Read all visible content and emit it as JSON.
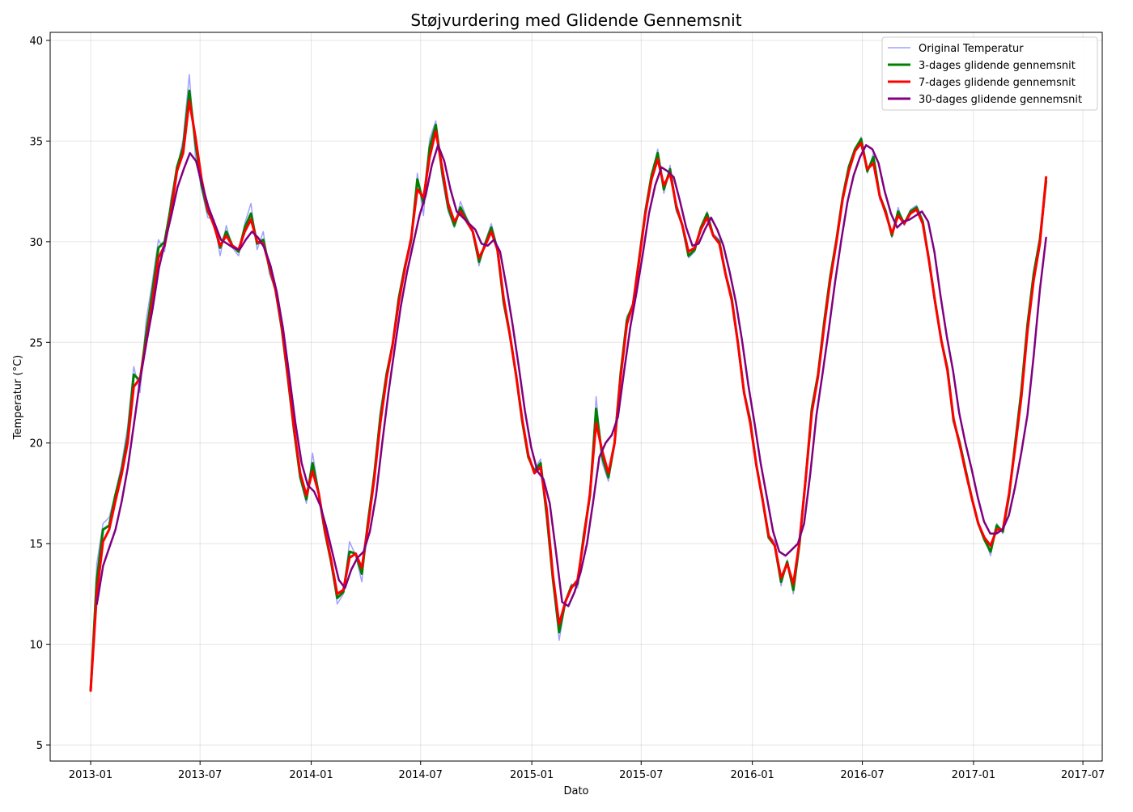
{
  "chart_data": {
    "type": "line",
    "title": "Støjvurdering med Glidende Gennemsnit",
    "xlabel": "Dato",
    "ylabel": "Temperatur (°C)",
    "x_axis_type": "date",
    "xlim": [
      "2012-10-26",
      "2017-08-02"
    ],
    "ylim": [
      4.2,
      40.4
    ],
    "x_ticks": [
      "2013-01",
      "2013-07",
      "2014-01",
      "2014-07",
      "2015-01",
      "2015-07",
      "2016-01",
      "2016-07",
      "2017-01",
      "2017-07"
    ],
    "y_ticks": [
      5,
      10,
      15,
      20,
      25,
      30,
      35,
      40
    ],
    "grid": true,
    "legend_position": "top-right",
    "date_range": [
      "2013-01-01",
      "2017-05-01"
    ],
    "series": [
      {
        "name": "Original Temperatur",
        "color": "#8080ff",
        "opacity": 0.75,
        "line_width": 1.5,
        "values": [
          7.7,
          14.0,
          16.0,
          16.3,
          17.5,
          18.9,
          20.8,
          23.8,
          22.5,
          26.1,
          28.0,
          30.1,
          29.5,
          32.1,
          33.6,
          35.1,
          38.3,
          34.2,
          32.6,
          31.2,
          31.1,
          29.3,
          30.8,
          29.7,
          29.3,
          30.9,
          31.9,
          29.6,
          30.5,
          28.4,
          27.6,
          25.6,
          23.1,
          20.5,
          18.2,
          17.0,
          19.5,
          17.6,
          15.5,
          14.3,
          12.0,
          12.5,
          15.1,
          14.4,
          13.1,
          16.3,
          18.5,
          21.6,
          23.5,
          24.8,
          27.3,
          28.7,
          29.8,
          33.4,
          31.3,
          35.1,
          36.0,
          33.2,
          31.5,
          30.7,
          32.0,
          31.2,
          30.6,
          28.8,
          30.0,
          30.9,
          29.7,
          26.8,
          25.6,
          23.5,
          21.1,
          19.3,
          18.7,
          19.2,
          16.1,
          13.4,
          10.2,
          12.0,
          13.0,
          12.8,
          15.5,
          17.2,
          22.3,
          19.0,
          18.1,
          19.9,
          23.5,
          26.3,
          26.8,
          29.1,
          31.6,
          33.2,
          34.6,
          32.4,
          33.8,
          31.5,
          30.9,
          29.2,
          29.5,
          30.6,
          31.5,
          30.4,
          30.1,
          28.5,
          27.3,
          25.1,
          22.6,
          21.3,
          19.0,
          17.4,
          15.4,
          15.1,
          12.9,
          14.2,
          12.5,
          14.8,
          18.1,
          21.9,
          23.4,
          26.1,
          28.4,
          30.0,
          32.1,
          33.8,
          34.5,
          35.2,
          33.4,
          34.4,
          32.1,
          31.6,
          30.2,
          31.7,
          30.8,
          31.6,
          31.8,
          31.1,
          29.1,
          27.0,
          25.2,
          23.8,
          21.0,
          20.1,
          18.7,
          17.3,
          16.1,
          15.3,
          14.4,
          16.0,
          15.5,
          17.3,
          20.1,
          22.8,
          26.1,
          28.5,
          30.2,
          33.0
        ]
      },
      {
        "name": "3-dages glidende gennemsnit",
        "color": "#008000",
        "line_width": 3,
        "values": [
          7.7,
          13.2,
          15.7,
          15.9,
          17.4,
          18.6,
          20.3,
          23.4,
          23.1,
          25.4,
          27.5,
          29.7,
          30.0,
          31.7,
          33.7,
          34.7,
          37.5,
          34.9,
          32.8,
          31.5,
          30.9,
          29.7,
          30.5,
          29.8,
          29.5,
          30.7,
          31.4,
          29.9,
          30.1,
          28.7,
          27.6,
          25.7,
          23.2,
          20.6,
          18.3,
          17.2,
          19.0,
          17.5,
          15.6,
          14.1,
          12.3,
          12.6,
          14.6,
          14.5,
          13.5,
          16.1,
          18.4,
          21.3,
          23.4,
          24.9,
          27.2,
          28.8,
          30.1,
          33.1,
          31.9,
          34.7,
          35.8,
          33.5,
          31.7,
          30.8,
          31.7,
          31.1,
          30.5,
          29.0,
          29.9,
          30.7,
          29.6,
          27.0,
          25.4,
          23.4,
          21.1,
          19.3,
          18.6,
          19.0,
          16.4,
          13.2,
          10.6,
          12.1,
          12.9,
          13.0,
          15.4,
          17.4,
          21.7,
          19.3,
          18.3,
          20.0,
          23.5,
          26.1,
          26.9,
          29.2,
          31.5,
          33.3,
          34.4,
          32.6,
          33.6,
          31.7,
          30.8,
          29.3,
          29.6,
          30.7,
          31.4,
          30.3,
          30.0,
          28.4,
          27.2,
          25.0,
          22.5,
          21.1,
          18.9,
          17.2,
          15.3,
          14.9,
          13.1,
          14.1,
          12.7,
          15.0,
          18.2,
          21.7,
          23.4,
          26.0,
          28.3,
          30.1,
          32.2,
          33.7,
          34.6,
          35.1,
          33.5,
          34.2,
          32.3,
          31.5,
          30.3,
          31.5,
          30.9,
          31.5,
          31.7,
          31.0,
          29.1,
          27.0,
          25.1,
          23.7,
          21.1,
          20.0,
          18.6,
          17.2,
          16.0,
          15.2,
          14.6,
          15.9,
          15.6,
          17.4,
          20.0,
          22.6,
          25.9,
          28.4,
          30.1,
          33.0
        ]
      },
      {
        "name": "7-dages glidende gennemsnit",
        "color": "#ff0000",
        "line_width": 3,
        "values": [
          7.7,
          12.5,
          15.1,
          15.7,
          17.1,
          18.4,
          20.0,
          22.8,
          23.2,
          25.0,
          27.0,
          29.2,
          29.8,
          31.4,
          33.5,
          34.4,
          37.0,
          35.2,
          33.1,
          31.6,
          30.8,
          29.8,
          30.3,
          29.8,
          29.6,
          30.5,
          31.1,
          30.0,
          29.9,
          28.8,
          27.6,
          25.8,
          23.3,
          20.7,
          18.5,
          17.4,
          18.6,
          17.5,
          15.7,
          14.2,
          12.5,
          12.7,
          14.3,
          14.5,
          13.8,
          15.9,
          18.2,
          21.0,
          23.2,
          24.9,
          27.0,
          28.7,
          30.2,
          32.6,
          32.2,
          34.2,
          35.5,
          33.7,
          31.9,
          31.0,
          31.5,
          31.0,
          30.5,
          29.2,
          29.8,
          30.5,
          29.6,
          27.2,
          25.4,
          23.4,
          21.2,
          19.4,
          18.5,
          18.8,
          16.7,
          13.4,
          11.0,
          12.1,
          12.8,
          13.2,
          15.2,
          17.5,
          21.0,
          19.6,
          18.5,
          20.0,
          23.3,
          25.9,
          26.9,
          29.1,
          31.4,
          33.1,
          34.1,
          32.8,
          33.4,
          31.8,
          30.8,
          29.5,
          29.7,
          30.6,
          31.2,
          30.3,
          29.9,
          28.4,
          27.1,
          25.0,
          22.5,
          21.0,
          18.9,
          17.2,
          15.4,
          14.9,
          13.3,
          14.0,
          13.0,
          15.1,
          18.2,
          21.5,
          23.3,
          25.8,
          28.1,
          30.0,
          32.1,
          33.5,
          34.5,
          34.9,
          33.6,
          33.9,
          32.3,
          31.4,
          30.4,
          31.3,
          30.9,
          31.4,
          31.6,
          30.9,
          29.1,
          27.0,
          25.1,
          23.6,
          21.2,
          19.9,
          18.5,
          17.2,
          16.0,
          15.3,
          14.9,
          15.7,
          15.7,
          17.5,
          19.8,
          22.3,
          25.6,
          28.1,
          29.9,
          33.2
        ]
      },
      {
        "name": "30-dages glidende gennemsnit",
        "color": "#800080",
        "line_width": 2.5,
        "values": [
          null,
          12.0,
          13.9,
          14.8,
          15.7,
          17.1,
          18.8,
          21.0,
          23.2,
          25.0,
          26.7,
          28.7,
          30.0,
          31.3,
          32.7,
          33.6,
          34.4,
          34.0,
          32.8,
          31.7,
          30.9,
          30.1,
          29.9,
          29.7,
          29.6,
          30.1,
          30.5,
          30.2,
          29.7,
          28.8,
          27.5,
          25.7,
          23.4,
          21.0,
          19.0,
          17.9,
          17.6,
          16.9,
          15.8,
          14.5,
          13.2,
          12.8,
          13.7,
          14.3,
          14.6,
          15.6,
          17.4,
          20.0,
          22.5,
          24.7,
          26.8,
          28.5,
          29.9,
          31.3,
          32.3,
          33.8,
          34.8,
          34.0,
          32.6,
          31.5,
          31.2,
          30.9,
          30.6,
          29.9,
          29.8,
          30.1,
          29.5,
          27.8,
          25.9,
          23.8,
          21.6,
          19.8,
          18.6,
          18.2,
          17.0,
          14.6,
          12.1,
          11.9,
          12.6,
          13.6,
          15.0,
          17.1,
          19.3,
          20.0,
          20.4,
          21.3,
          23.6,
          25.8,
          27.5,
          29.4,
          31.4,
          32.8,
          33.7,
          33.5,
          33.2,
          32.0,
          30.7,
          29.8,
          29.9,
          30.6,
          31.2,
          30.6,
          29.8,
          28.5,
          27.0,
          25.1,
          22.9,
          21.0,
          19.0,
          17.3,
          15.6,
          14.6,
          14.4,
          14.7,
          15.0,
          16.0,
          18.5,
          21.4,
          23.5,
          25.7,
          28.0,
          30.1,
          32.0,
          33.3,
          34.2,
          34.8,
          34.6,
          33.9,
          32.5,
          31.4,
          30.7,
          31.0,
          31.1,
          31.3,
          31.5,
          31.0,
          29.5,
          27.3,
          25.3,
          23.6,
          21.5,
          20.0,
          18.7,
          17.3,
          16.1,
          15.5,
          15.5,
          15.7,
          16.4,
          17.8,
          19.5,
          21.4,
          24.3,
          27.6,
          30.2
        ]
      }
    ]
  }
}
